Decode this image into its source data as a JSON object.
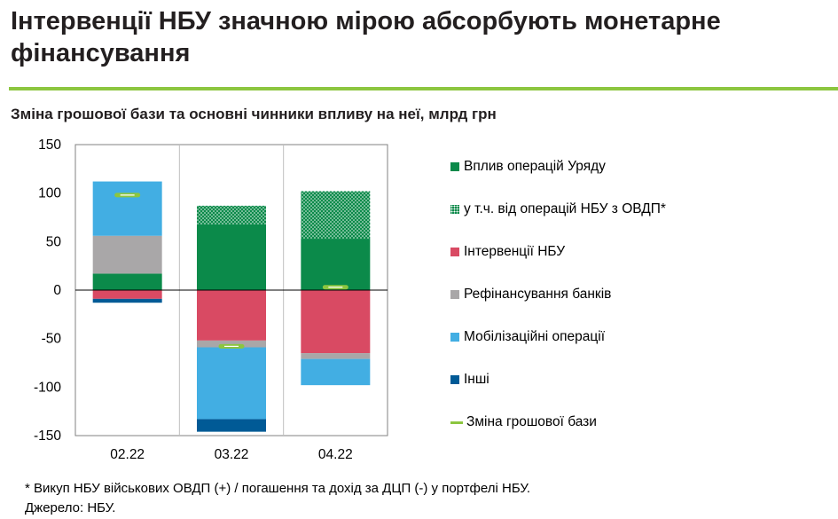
{
  "header": {
    "title": "Інтервенції НБУ значною мірою абсорбують монетарне фінансування"
  },
  "chart_data": {
    "type": "bar",
    "stacked": true,
    "title": "Зміна грошової бази та основні чинники впливу на неї, млрд грн",
    "categories": [
      "02.22",
      "03.22",
      "04.22"
    ],
    "ylim": [
      -150,
      150
    ],
    "yticks": [
      150,
      100,
      50,
      0,
      -50,
      -100,
      -150
    ],
    "series": [
      {
        "name": "Вплив операцій Уряду",
        "color": "#0b8a4a",
        "pattern": "solid",
        "values": [
          17,
          68,
          53
        ]
      },
      {
        "name": "у т.ч. від операцій НБУ з ОВДП*",
        "color": "#0b8a4a",
        "pattern": "dots",
        "values": [
          0,
          19,
          49
        ]
      },
      {
        "name": "Інтервенції НБУ",
        "color": "#d94a63",
        "pattern": "solid",
        "values": [
          -9,
          -52,
          -65
        ]
      },
      {
        "name": "Рефінансування банків",
        "color": "#a9a7a8",
        "pattern": "solid",
        "values": [
          39,
          -7,
          -6
        ]
      },
      {
        "name": "Мобілізаційні операції",
        "color": "#42aee3",
        "pattern": "solid",
        "values": [
          56,
          -74,
          -27
        ]
      },
      {
        "name": "Інші",
        "color": "#005a96",
        "pattern": "solid",
        "values": [
          -4,
          -13,
          0
        ]
      }
    ],
    "line_series": {
      "name": "Зміна грошової бази",
      "color": "#8cc63f",
      "values": [
        98,
        -58,
        3
      ]
    },
    "grid": "vertical-separators",
    "legend_position": "right"
  },
  "footer": {
    "note": "* Викуп НБУ військових ОВДП (+) / погашення та дохід за ДЦП (-) у портфелі НБУ.",
    "source": "Джерело: НБУ."
  }
}
